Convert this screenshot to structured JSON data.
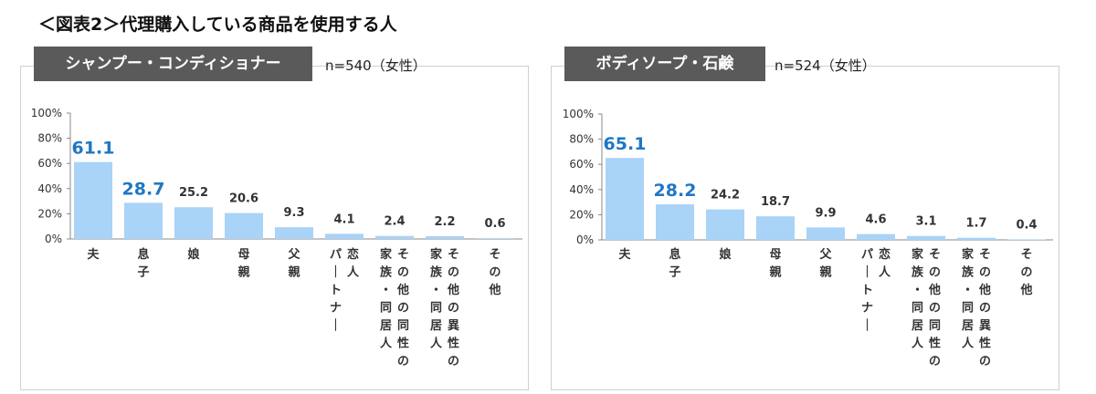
{
  "figure_title": "＜図表2＞代理購入している商品を使用する人",
  "chart_data": [
    {
      "type": "bar",
      "title": "シャンプー・コンディショナー",
      "subtitle": "n=540（女性）",
      "categories": [
        [
          "夫"
        ],
        [
          "息子"
        ],
        [
          "娘"
        ],
        [
          "母親"
        ],
        [
          "父親"
        ],
        [
          "恋人",
          "パートナー"
        ],
        [
          "その他の同性の",
          "家族・同居人"
        ],
        [
          "その他の異性の",
          "家族・同居人"
        ],
        [
          "その他"
        ]
      ],
      "values": [
        61.1,
        28.7,
        25.2,
        20.6,
        9.3,
        4.1,
        2.4,
        2.2,
        0.6
      ],
      "highlight_indices": [
        0,
        1
      ],
      "yticks": [
        "0%",
        "20%",
        "40%",
        "60%",
        "80%",
        "100%"
      ],
      "ylim": [
        0,
        100
      ],
      "bar_color": "#a9d3f7",
      "highlight_color": "#1f77c4"
    },
    {
      "type": "bar",
      "title": "ボディソープ・石鹸",
      "subtitle": "n=524（女性）",
      "categories": [
        [
          "夫"
        ],
        [
          "息子"
        ],
        [
          "娘"
        ],
        [
          "母親"
        ],
        [
          "父親"
        ],
        [
          "恋人",
          "パートナー"
        ],
        [
          "その他の同性の",
          "家族・同居人"
        ],
        [
          "その他の異性の",
          "家族・同居人"
        ],
        [
          "その他"
        ]
      ],
      "values": [
        65.1,
        28.2,
        24.2,
        18.7,
        9.9,
        4.6,
        3.1,
        1.7,
        0.4
      ],
      "highlight_indices": [
        0,
        1
      ],
      "yticks": [
        "0%",
        "20%",
        "40%",
        "60%",
        "80%",
        "100%"
      ],
      "ylim": [
        0,
        100
      ],
      "bar_color": "#a9d3f7",
      "highlight_color": "#1f77c4"
    }
  ]
}
